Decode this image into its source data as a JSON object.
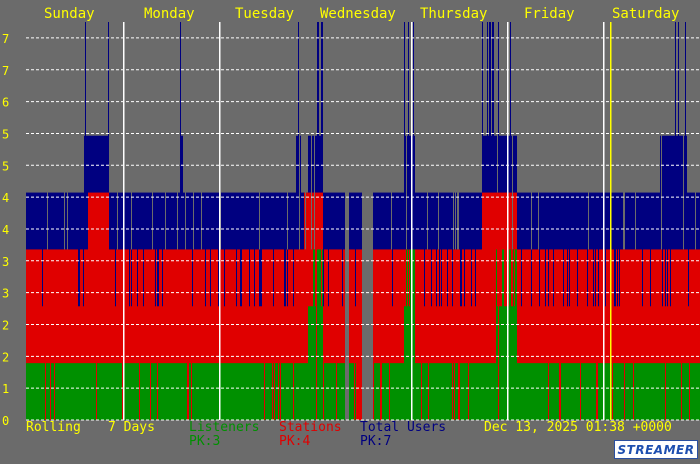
{
  "colors": {
    "background": "#6b6b6b",
    "listeners": "#009000",
    "stations": "#e00000",
    "total": "#000080",
    "label": "#ffff00",
    "marker_now": "#ffff00",
    "day_line": "#ffffff"
  },
  "chart_data": {
    "type": "area",
    "title": "",
    "xlabel": "",
    "ylabel": "",
    "x_labels": [
      "Sunday",
      "Monday",
      "Tuesday",
      "Wednesday",
      "Thursday",
      "Friday",
      "Saturday"
    ],
    "y_tick_labels": [
      "0",
      "1",
      "2",
      "2",
      "3",
      "3",
      "4",
      "4",
      "5",
      "5",
      "6",
      "7",
      "7"
    ],
    "ylim": [
      0,
      7
    ],
    "grid": true,
    "legend": "bottom",
    "series": [
      {
        "name": "Listeners",
        "peak": 3,
        "typical": 1
      },
      {
        "name": "Stations",
        "peak": 4,
        "typical": 3
      },
      {
        "name": "Total Users",
        "peak": 7,
        "typical": 4
      }
    ]
  },
  "footer": {
    "rolling": "Rolling",
    "days": "7 Days",
    "listeners_label": "Listeners",
    "listeners_peak": "PK:3",
    "stations_label": "Stations",
    "stations_peak": "PK:4",
    "total_label": "Total Users",
    "total_peak": "PK:7",
    "timestamp": "Dec 13, 2025 01:38 +0000"
  },
  "logo": {
    "text": "STREAMER"
  }
}
